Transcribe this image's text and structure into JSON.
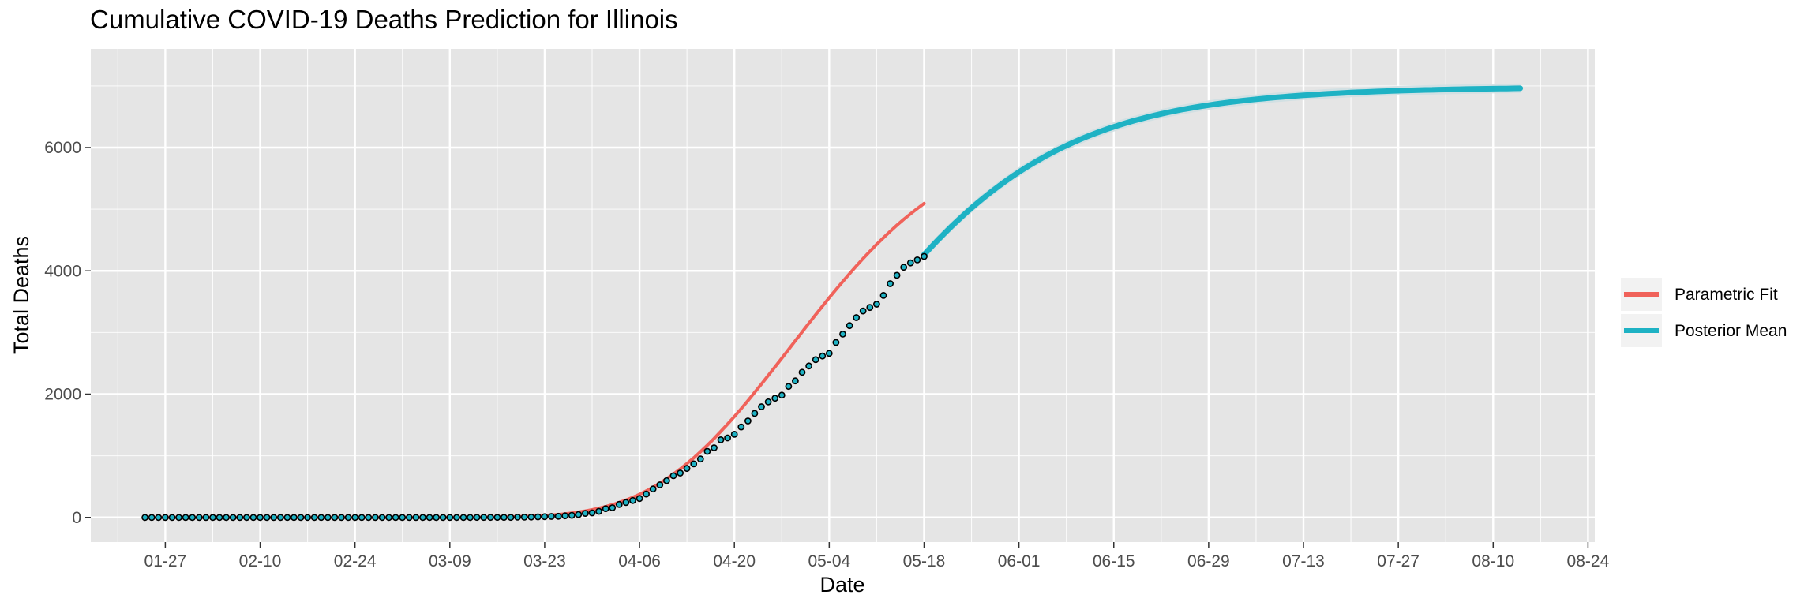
{
  "title": "Cumulative COVID-19 Deaths Prediction for Illinois",
  "colors": {
    "panel": "#e5e5e5",
    "grid_major": "#ffffff",
    "parametric": "#f0625a",
    "posterior": "#1eb2c4",
    "band": "#cfdfe2",
    "point_fill": "#1eb2c4",
    "point_stroke": "#000000",
    "legend_bg": "#f2f2f2"
  },
  "chart_data": {
    "type": "line",
    "title": "Cumulative COVID-19 Deaths Prediction for Illinois",
    "xlabel": "Date",
    "ylabel": "Total Deaths",
    "x_ticks": [
      "01-27",
      "02-10",
      "02-24",
      "03-09",
      "03-23",
      "04-06",
      "04-20",
      "05-04",
      "05-18",
      "06-01",
      "06-15",
      "06-29",
      "07-13",
      "07-27",
      "08-10",
      "08-24"
    ],
    "x_range": [
      "2020-01-16",
      "2020-08-25"
    ],
    "y_ticks": [
      0,
      2000,
      4000,
      6000
    ],
    "ylim": [
      -400,
      7600
    ],
    "grid": true,
    "legend_position": "right",
    "legend": [
      "Parametric Fit",
      "Posterior Mean"
    ],
    "observed_points": {
      "x_start": "2020-01-24",
      "x_end": "2020-05-18",
      "values": [
        0,
        0,
        0,
        0,
        0,
        0,
        0,
        0,
        0,
        0,
        0,
        0,
        0,
        0,
        0,
        0,
        0,
        0,
        0,
        0,
        0,
        0,
        0,
        0,
        0,
        0,
        0,
        0,
        0,
        0,
        0,
        0,
        0,
        0,
        0,
        0,
        0,
        0,
        0,
        0,
        0,
        0,
        0,
        0,
        0,
        0,
        0,
        0,
        0,
        1,
        1,
        1,
        1,
        1,
        1,
        4,
        5,
        6,
        9,
        12,
        16,
        19,
        26,
        34,
        47,
        66,
        73,
        99,
        141,
        157,
        210,
        243,
        274,
        307,
        380,
        462,
        528,
        596,
        677,
        720,
        794,
        868,
        948,
        1072,
        1130,
        1259,
        1290,
        1349,
        1468,
        1565,
        1688,
        1795,
        1874,
        1933,
        1983,
        2125,
        2215,
        2355,
        2457,
        2559,
        2618,
        2662,
        2838,
        2974,
        3111,
        3241,
        3349,
        3406,
        3459,
        3601,
        3792,
        3928,
        4058,
        4129,
        4177,
        4234
      ]
    },
    "series": [
      {
        "name": "Parametric Fit",
        "color": "#f0625a",
        "x_start": "2020-01-24",
        "x_end": "2020-05-18",
        "values": [
          0,
          0,
          0,
          0,
          0,
          0,
          0,
          0,
          0,
          0,
          0,
          0,
          0,
          0,
          0,
          0,
          0,
          0,
          0,
          0,
          0,
          0,
          0,
          0,
          0,
          0,
          0,
          0,
          0,
          0,
          0,
          0,
          0,
          0,
          0,
          0,
          0,
          0,
          0,
          0,
          0,
          0,
          0,
          0,
          0,
          0,
          1,
          1,
          1,
          2,
          3,
          4,
          5,
          7,
          9,
          12,
          15,
          19,
          24,
          30,
          38,
          47,
          58,
          71,
          86,
          104,
          125,
          149,
          176,
          207,
          242,
          282,
          326,
          375,
          430,
          490,
          555,
          626,
          702,
          785,
          873,
          966,
          1065,
          1170,
          1280,
          1394,
          1513,
          1636,
          1763,
          1894,
          2028,
          2164,
          2302,
          2442,
          2583,
          2725,
          2867,
          3008,
          3149,
          3289,
          3427,
          3563,
          3696,
          3827,
          3955,
          4079,
          4199,
          4316,
          4429,
          4537,
          4641,
          4740,
          4835,
          4925,
          5011,
          5092
        ]
      },
      {
        "name": "Posterior Mean",
        "color": "#1eb2c4",
        "x_start": "2020-05-18",
        "x_end": "2020-08-14",
        "values": [
          4263,
          4381,
          4496,
          4608,
          4716,
          4821,
          4922,
          5019,
          5113,
          5203,
          5290,
          5373,
          5453,
          5530,
          5603,
          5673,
          5740,
          5804,
          5865,
          5923,
          5979,
          6032,
          6082,
          6130,
          6176,
          6219,
          6260,
          6299,
          6336,
          6371,
          6405,
          6436,
          6466,
          6494,
          6521,
          6546,
          6570,
          6593,
          6614,
          6634,
          6653,
          6671,
          6688,
          6704,
          6719,
          6733,
          6747,
          6760,
          6772,
          6783,
          6794,
          6804,
          6814,
          6823,
          6832,
          6840,
          6848,
          6855,
          6862,
          6869,
          6875,
          6881,
          6886,
          6892,
          6897,
          6901,
          6906,
          6910,
          6914,
          6918,
          6921,
          6925,
          6928,
          6931,
          6934,
          6936,
          6939,
          6941,
          6944,
          6946,
          6948,
          6950,
          6952,
          6954,
          6955,
          6957,
          6958,
          6960,
          6961
        ]
      }
    ]
  }
}
